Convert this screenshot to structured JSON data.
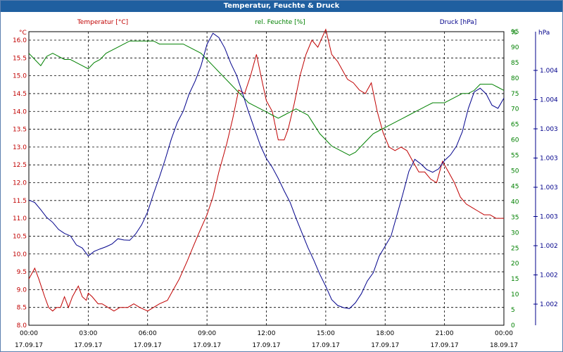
{
  "window": {
    "title": "Temperatur, Feuchte & Druck"
  },
  "chart_data": {
    "type": "line",
    "title": "Temperatur, Feuchte & Druck",
    "x_ticks": [
      {
        "time": "00:00",
        "date": "17.09.17"
      },
      {
        "time": "03:00",
        "date": "17.09.17"
      },
      {
        "time": "06:00",
        "date": "17.09.17"
      },
      {
        "time": "09:00",
        "date": "17.09.17"
      },
      {
        "time": "12:00",
        "date": "17.09.17"
      },
      {
        "time": "15:00",
        "date": "17.09.17"
      },
      {
        "time": "18:00",
        "date": "17.09.17"
      },
      {
        "time": "21:00",
        "date": "17.09.17"
      },
      {
        "time": "00:00",
        "date": "18.09.17"
      }
    ],
    "grid": true,
    "axes": {
      "temp": {
        "label": "Temperatur [°C]",
        "unit": "°C",
        "min": 8.0,
        "max": 16.0,
        "ticks": [
          "8.0",
          "8.5",
          "9.0",
          "9.5",
          "10.0",
          "10.5",
          "11.0",
          "11.5",
          "12.0",
          "12.5",
          "13.0",
          "13.5",
          "14.0",
          "14.5",
          "15.0",
          "15.5",
          "16.0"
        ]
      },
      "hum": {
        "label": "rel. Feuchte [%]",
        "unit": "%",
        "min": 0,
        "max": 95,
        "ticks": [
          "0",
          "5",
          "10",
          "15",
          "20",
          "25",
          "30",
          "35",
          "40",
          "45",
          "50",
          "55",
          "60",
          "65",
          "70",
          "75",
          "80",
          "85",
          "90",
          "95"
        ]
      },
      "press": {
        "label": "Druck [hPa]",
        "unit": "hPa",
        "ticks": [
          "1.002",
          "1.002",
          "1.002",
          "1.003",
          "1.003",
          "1.003",
          "1.003",
          "1.004",
          "1.004"
        ]
      }
    },
    "colors": {
      "temp": "#c00000",
      "hum": "#008000",
      "press": "#00008b",
      "title_bg": "#1f5fa0"
    },
    "series": [
      {
        "name": "Temperatur [°C]",
        "axis": "temp",
        "x": [
          0,
          0.3,
          0.5,
          0.8,
          1.0,
          1.2,
          1.4,
          1.6,
          1.8,
          2.0,
          2.2,
          2.5,
          2.7,
          2.9,
          3.0,
          3.2,
          3.5,
          3.7,
          4.0,
          4.3,
          4.6,
          5.0,
          5.3,
          5.6,
          6.0,
          6.3,
          6.6,
          7.0,
          7.3,
          7.6,
          8.0,
          8.3,
          8.6,
          9.0,
          9.3,
          9.6,
          10.0,
          10.3,
          10.6,
          10.9,
          11.2,
          11.5,
          11.8,
          12.0,
          12.3,
          12.6,
          12.9,
          13.1,
          13.4,
          13.7,
          14.0,
          14.3,
          14.6,
          15.0,
          15.3,
          15.6,
          15.9,
          16.1,
          16.4,
          16.7,
          17.0,
          17.3,
          17.6,
          17.9,
          18.2,
          18.5,
          18.8,
          19.1,
          19.4,
          19.7,
          20.0,
          20.3,
          20.6,
          20.9,
          21.2,
          21.5,
          21.8,
          22.1,
          22.4,
          22.7,
          23.0,
          23.3,
          23.6,
          24.0
        ],
        "values": [
          9.3,
          9.6,
          9.3,
          8.8,
          8.5,
          8.4,
          8.5,
          8.5,
          8.8,
          8.5,
          8.8,
          9.1,
          8.8,
          8.7,
          8.9,
          8.8,
          8.6,
          8.6,
          8.5,
          8.4,
          8.5,
          8.5,
          8.6,
          8.5,
          8.4,
          8.5,
          8.6,
          8.7,
          9.0,
          9.3,
          9.8,
          10.2,
          10.6,
          11.1,
          11.6,
          12.3,
          13.1,
          13.8,
          14.6,
          14.5,
          15.0,
          15.6,
          14.8,
          14.3,
          14.0,
          13.2,
          13.2,
          13.5,
          14.2,
          15.0,
          15.6,
          16.0,
          15.8,
          16.3,
          15.6,
          15.4,
          15.1,
          14.9,
          14.8,
          14.6,
          14.5,
          14.8,
          14.0,
          13.4,
          13.0,
          12.9,
          13.0,
          12.9,
          12.6,
          12.3,
          12.3,
          12.1,
          12.0,
          12.6,
          12.3,
          12.0,
          11.6,
          11.4,
          11.3,
          11.2,
          11.1,
          11.1,
          11.0,
          11.0
        ]
      },
      {
        "name": "rel. Feuchte [%]",
        "axis": "hum",
        "x": [
          0,
          0.3,
          0.6,
          0.9,
          1.2,
          1.5,
          1.8,
          2.1,
          2.4,
          2.7,
          3.0,
          3.3,
          3.6,
          3.9,
          4.2,
          4.5,
          4.8,
          5.1,
          5.4,
          5.7,
          6.0,
          6.3,
          6.6,
          6.9,
          7.2,
          7.5,
          7.8,
          8.1,
          8.4,
          8.7,
          9.0,
          9.3,
          9.6,
          9.9,
          10.2,
          10.5,
          10.8,
          11.1,
          11.4,
          11.7,
          12.0,
          12.3,
          12.6,
          12.9,
          13.2,
          13.5,
          13.8,
          14.1,
          14.4,
          14.7,
          15.0,
          15.3,
          15.6,
          15.9,
          16.2,
          16.5,
          16.8,
          17.1,
          17.4,
          17.7,
          18.0,
          18.3,
          18.6,
          18.9,
          19.2,
          19.5,
          19.8,
          20.1,
          20.4,
          20.7,
          21.0,
          21.3,
          21.6,
          21.9,
          22.2,
          22.5,
          22.8,
          23.1,
          23.4,
          23.7,
          24.0
        ],
        "values": [
          88,
          86,
          84,
          87,
          88,
          87,
          86,
          86,
          85,
          84,
          83,
          85,
          86,
          88,
          89,
          90,
          91,
          92,
          92,
          92,
          92,
          92,
          91,
          91,
          91,
          91,
          91,
          90,
          89,
          88,
          86,
          84,
          82,
          80,
          78,
          76,
          74,
          72,
          71,
          70,
          69,
          68,
          67,
          68,
          69,
          70,
          69,
          68,
          65,
          62,
          60,
          58,
          57,
          56,
          55,
          56,
          58,
          60,
          62,
          63,
          64,
          65,
          66,
          67,
          68,
          69,
          70,
          71,
          72,
          72,
          72,
          73,
          74,
          75,
          75,
          76,
          78,
          78,
          78,
          77,
          76
        ]
      },
      {
        "name": "Druck [hPa]",
        "axis": "press",
        "x": [
          0,
          0.3,
          0.6,
          0.9,
          1.2,
          1.5,
          1.8,
          2.1,
          2.4,
          2.7,
          3.0,
          3.3,
          3.6,
          3.9,
          4.2,
          4.5,
          4.8,
          5.1,
          5.4,
          5.7,
          6.0,
          6.3,
          6.6,
          6.9,
          7.2,
          7.5,
          7.8,
          8.1,
          8.4,
          8.7,
          9.0,
          9.3,
          9.6,
          9.9,
          10.2,
          10.5,
          10.8,
          11.1,
          11.4,
          11.7,
          12.0,
          12.3,
          12.6,
          12.9,
          13.2,
          13.5,
          13.8,
          14.1,
          14.4,
          14.7,
          15.0,
          15.3,
          15.6,
          15.9,
          16.2,
          16.5,
          16.8,
          17.1,
          17.4,
          17.7,
          18.0,
          18.3,
          18.6,
          18.9,
          19.2,
          19.5,
          19.8,
          20.1,
          20.4,
          20.7,
          21.0,
          21.3,
          21.6,
          21.9,
          22.2,
          22.5,
          22.8,
          23.1,
          23.4,
          23.7,
          24.0
        ],
        "values": [
          40.5,
          39.7,
          37.4,
          34.9,
          33.3,
          31.0,
          29.7,
          28.9,
          26.0,
          25.0,
          22.4,
          23.9,
          24.7,
          25.4,
          26.3,
          28.0,
          27.6,
          27.5,
          29.6,
          32.5,
          36.7,
          42.6,
          48.0,
          53.9,
          60.3,
          65.6,
          69.3,
          74.9,
          79.0,
          84.0,
          90.9,
          94.5,
          93.1,
          89.7,
          84.8,
          80.8,
          75.0,
          69.0,
          63.6,
          58.1,
          54.0,
          51.1,
          47.5,
          43.5,
          39.8,
          34.6,
          29.9,
          25.1,
          21.0,
          16.5,
          12.6,
          8.3,
          6.4,
          5.7,
          5.4,
          7.3,
          10.2,
          14.3,
          17.0,
          22.4,
          25.6,
          28.9,
          35.7,
          42.6,
          49.8,
          53.7,
          52.2,
          50.4,
          49.5,
          50.6,
          53.3,
          55.1,
          57.9,
          62.6,
          70.1,
          75.5,
          76.7,
          74.9,
          71.2,
          70.2,
          73.5
        ]
      }
    ]
  }
}
